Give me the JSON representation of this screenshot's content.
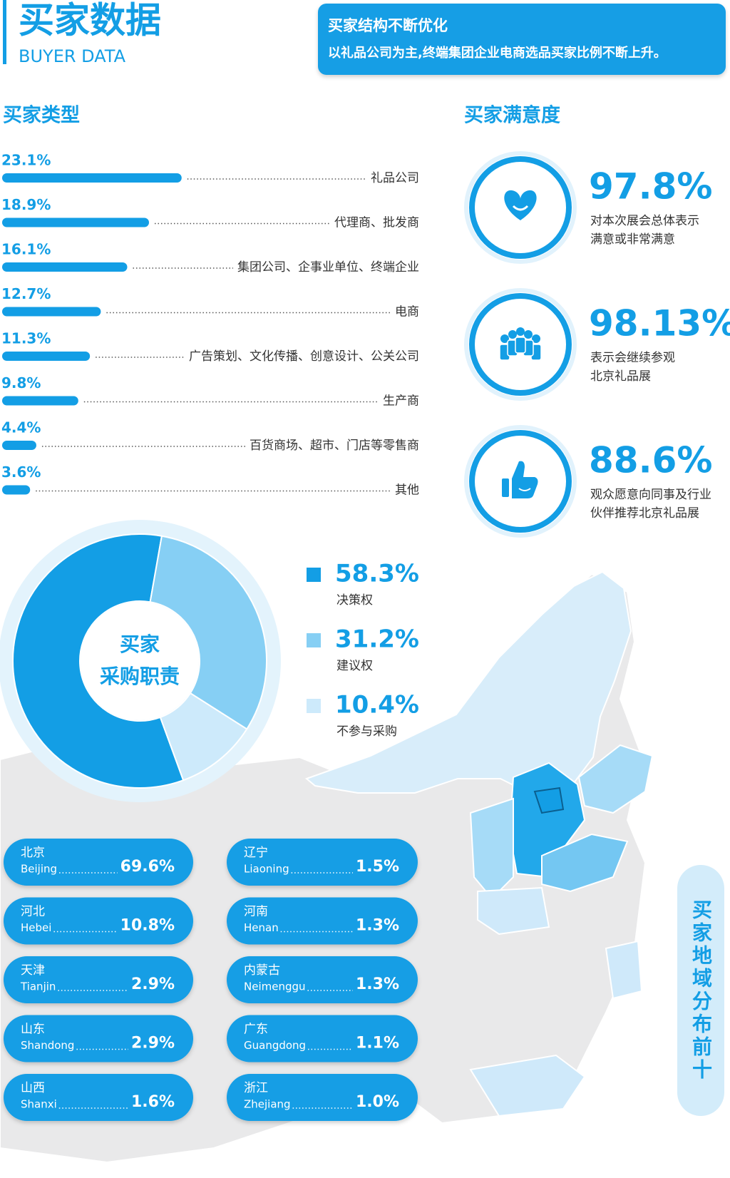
{
  "header": {
    "title": "买家数据",
    "subtitle": "BUYER DATA",
    "banner_title": "买家结构不断优化",
    "banner_text": "以礼品公司为主,终端集团企业电商选品买家比例不断上升。"
  },
  "chart_data": [
    {
      "type": "bar",
      "title": "买家类型",
      "categories": [
        "礼品公司",
        "代理商、批发商",
        "集团公司、企事业单位、终端企业",
        "电商",
        "广告策划、文化传播、创意设计、公关公司",
        "生产商",
        "百货商场、超市、门店等零售商",
        "其他"
      ],
      "values": [
        23.1,
        18.9,
        16.1,
        12.7,
        11.3,
        9.8,
        4.4,
        3.6
      ],
      "value_labels": [
        "23.1%",
        "18.9%",
        "16.1%",
        "12.7%",
        "11.3%",
        "9.8%",
        "4.4%",
        "3.6%"
      ],
      "color": "#139ee5"
    },
    {
      "type": "donut",
      "center_label": [
        "买家",
        "采购职责"
      ],
      "categories": [
        "决策权",
        "建议权",
        "不参与采购"
      ],
      "values": [
        58.3,
        31.2,
        10.4
      ],
      "value_labels": [
        "58.3%",
        "31.2%",
        "10.4%"
      ],
      "colors": [
        "#139ee5",
        "#86cff4",
        "#cdeafb"
      ]
    }
  ],
  "satisfaction": {
    "title": "买家满意度",
    "items": [
      {
        "value": "97.8%",
        "lines": [
          "对本次展会总体表示",
          "满意或非常满意"
        ]
      },
      {
        "value": "98.13%",
        "lines": [
          "表示会继续参观",
          "北京礼品展"
        ]
      },
      {
        "value": "88.6%",
        "lines": [
          "观众愿意向同事及行业",
          "伙伴推荐北京礼品展"
        ]
      }
    ]
  },
  "regions": {
    "title": "买家地域分布前十",
    "items": [
      {
        "name": "北京",
        "name_en": "Beijing",
        "value": "69.6%"
      },
      {
        "name": "河北",
        "name_en": "Hebei",
        "value": "10.8%"
      },
      {
        "name": "天津",
        "name_en": "Tianjin",
        "value": "2.9%"
      },
      {
        "name": "山东",
        "name_en": "Shandong",
        "value": "2.9%"
      },
      {
        "name": "山西",
        "name_en": "Shanxi",
        "value": "1.6%"
      },
      {
        "name": "辽宁",
        "name_en": "Liaoning",
        "value": "1.5%"
      },
      {
        "name": "河南",
        "name_en": "Henan",
        "value": "1.3%"
      },
      {
        "name": "内蒙古",
        "name_en": "Neimenggu",
        "value": "1.3%"
      },
      {
        "name": "广东",
        "name_en": "Guangdong",
        "value": "1.1%"
      },
      {
        "name": "浙江",
        "name_en": "Zhejiang",
        "value": "1.0%"
      }
    ]
  }
}
